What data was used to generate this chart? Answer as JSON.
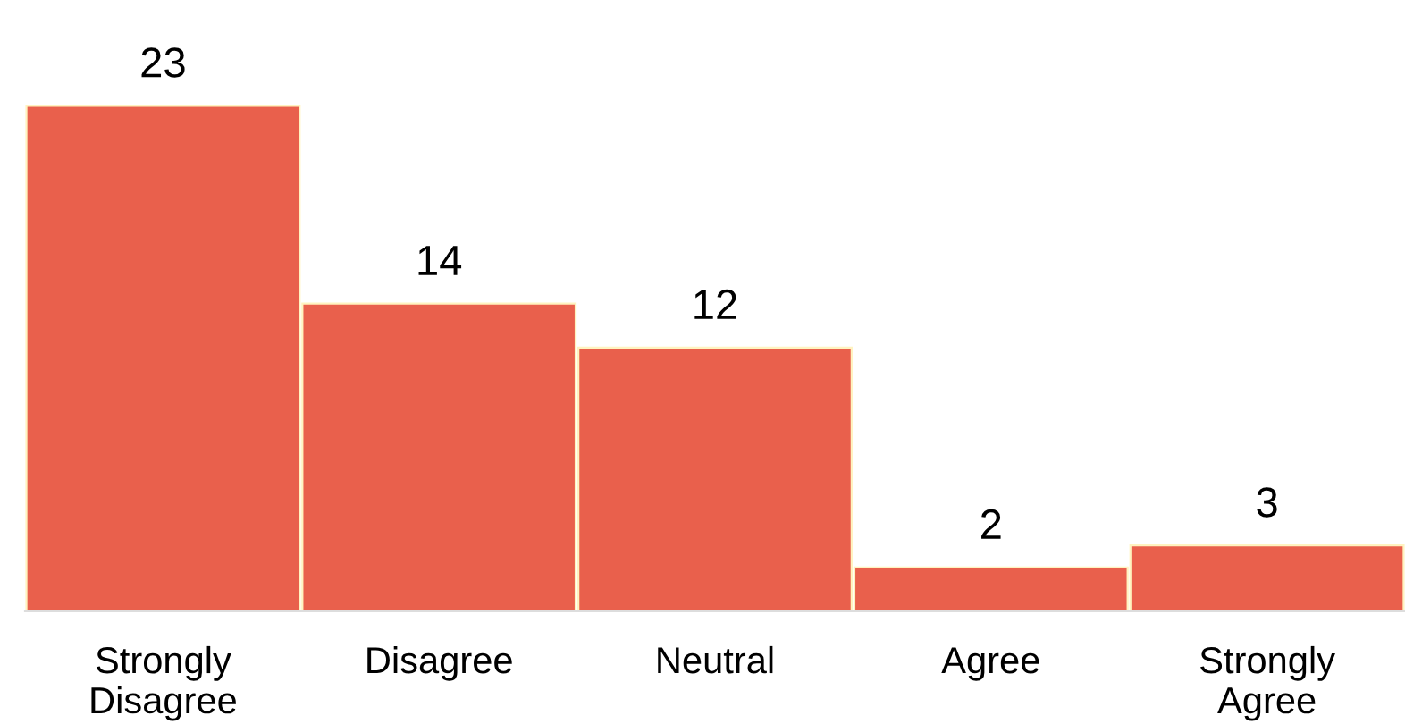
{
  "chart_data": {
    "type": "bar",
    "categories": [
      "Strongly\nDisagree",
      "Disagree",
      "Neutral",
      "Agree",
      "Strongly\nAgree"
    ],
    "values": [
      23,
      14,
      12,
      2,
      3
    ],
    "color": "#e9604c",
    "tick_labels": "x",
    "data_labels": true,
    "grid": false,
    "legend": false
  }
}
